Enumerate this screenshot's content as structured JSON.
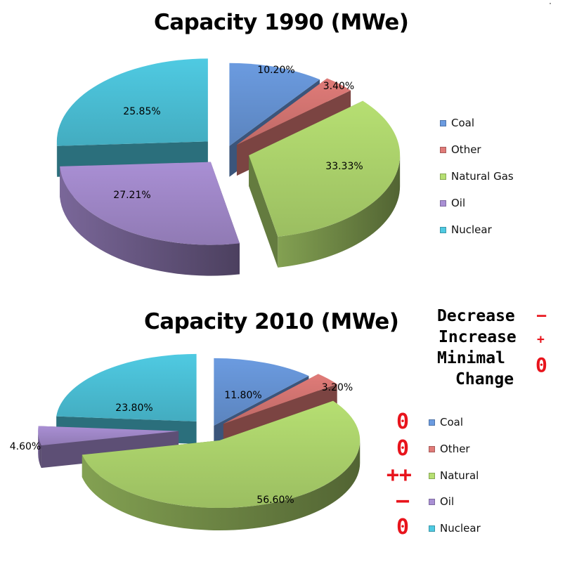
{
  "chart_data": [
    {
      "type": "pie",
      "title": "Capacity 1990 (MWe)",
      "categories": [
        "Coal",
        "Other",
        "Natural Gas",
        "Oil",
        "Nuclear"
      ],
      "values": [
        10.2,
        3.4,
        33.33,
        27.21,
        25.85
      ],
      "labels": [
        "10.20%",
        "3.40%",
        "33.33%",
        "27.21%",
        "25.85%"
      ],
      "legend": [
        "Coal",
        "Other",
        "Natural Gas",
        "Oil",
        "Nuclear"
      ],
      "legend_position": "right"
    },
    {
      "type": "pie",
      "title": "Capacity 2010 (MWe)",
      "categories": [
        "Coal",
        "Other",
        "Natural",
        "Oil",
        "Nuclear"
      ],
      "values": [
        11.8,
        3.2,
        56.6,
        4.6,
        23.8
      ],
      "labels": [
        "11.80%",
        "3.20%",
        "56.60%",
        "4.60%",
        "23.80%"
      ],
      "legend": [
        "Coal",
        "Other",
        "Natural",
        "Oil",
        "Nuclear"
      ],
      "legend_position": "right",
      "change_marks": [
        "0",
        "0",
        "++",
        "–",
        "0"
      ]
    }
  ],
  "key": {
    "decrease_label": "Decrease",
    "decrease_symbol": "–",
    "increase_label": "Increase",
    "increase_symbol": "+",
    "minimal_label": "Minimal",
    "change_label": "Change",
    "minimal_symbol": "0"
  },
  "colors": {
    "coal": "#6b9be0",
    "other": "#e07b78",
    "natural": "#b6df72",
    "oil": "#a98fd4",
    "nuclear": "#4fcae2",
    "accent_red": "#e8141c"
  }
}
